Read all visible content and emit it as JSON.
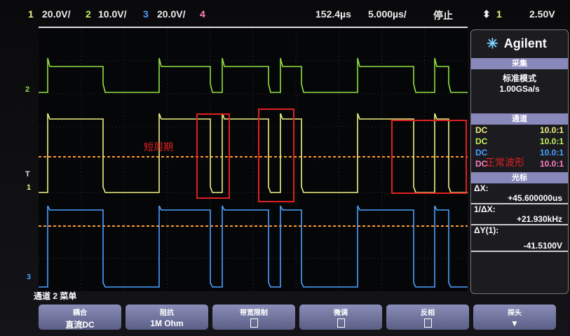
{
  "top_bar": {
    "ch1_num": "1",
    "ch1_scale": "20.0V/",
    "ch2_num": "2",
    "ch2_scale": "10.0V/",
    "ch3_num": "3",
    "ch3_scale": "20.0V/",
    "ch4_num": "4",
    "delay": "152.4µs",
    "timebase": "5.000µs/",
    "run_state": "停止",
    "trigger_source": "1",
    "trigger_level": "2.50V"
  },
  "colors": {
    "ch1": "#f0f080",
    "ch2": "#90e040",
    "ch3": "#4aa0ff",
    "ch4": "#ff80c0",
    "marker": "#ff9a30",
    "annotation": "#e02020"
  },
  "brand": "Agilent",
  "acquisition": {
    "header": "采集",
    "mode": "标准模式",
    "rate": "1.00GSa/s"
  },
  "channels": {
    "header": "通道",
    "items": [
      {
        "coupling": "DC",
        "probe": "10.0:1"
      },
      {
        "coupling": "DC",
        "probe": "10.0:1"
      },
      {
        "coupling": "DC",
        "probe": "10.0:1"
      },
      {
        "coupling": "DC",
        "probe": "10.0:1"
      }
    ]
  },
  "cursors": {
    "header": "光标",
    "dx_label": "ΔX:",
    "dx": "+45.600000us",
    "inv_label": "1/ΔX:",
    "inv": "+21.930kHz",
    "dy_label": "ΔY(1):",
    "dy": "-41.5100V"
  },
  "markers": {
    "ch2": "2",
    "ch1": "1",
    "ch3": "3",
    "trig": "T"
  },
  "annotations": {
    "short_period": "短周期",
    "normal_wave": "正常波形"
  },
  "menu": {
    "title": "通道 2 菜单",
    "buttons": [
      {
        "label": "耦合",
        "value": "直流DC"
      },
      {
        "label": "阻抗",
        "value": "1M Ohm"
      },
      {
        "label": "带宽限制",
        "value": ""
      },
      {
        "label": "微调",
        "value": ""
      },
      {
        "label": "反相",
        "value": ""
      },
      {
        "label": "探头",
        "value": ""
      }
    ]
  }
}
